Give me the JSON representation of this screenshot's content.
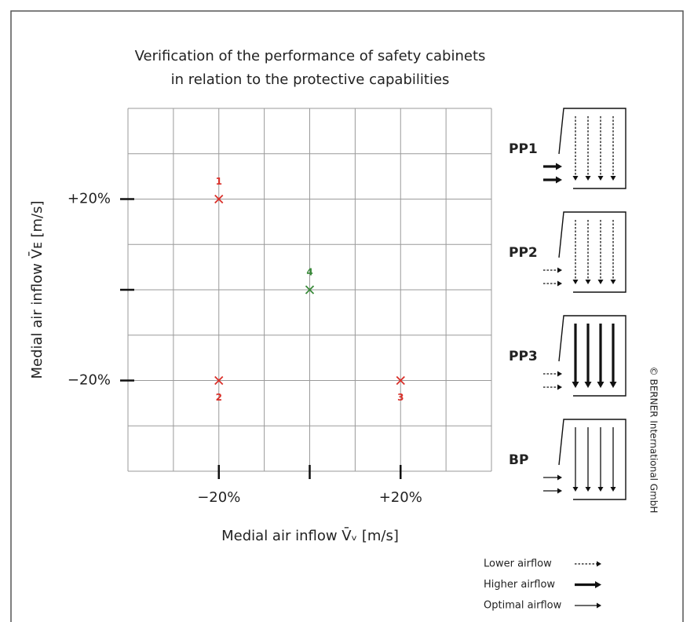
{
  "chart_data": {
    "type": "scatter",
    "title": [
      "Verification of the performance of safety cabinets",
      "in relation to the protective capabilities"
    ],
    "x_label": "Medial air inflow V̄ᵥ [m/s]",
    "y_label": "Medial air inflow V̄ᴇ [m/s]",
    "x": [
      -20,
      -20,
      20,
      0
    ],
    "y": [
      20,
      -20,
      -20,
      0
    ],
    "point_labels": [
      "1",
      "2",
      "3",
      "4"
    ],
    "colors": [
      "#d9302a",
      "#d9302a",
      "#d9302a",
      "#3a8a3a"
    ],
    "xlim": [
      -40,
      40
    ],
    "ylim": [
      -40,
      40
    ],
    "xticks": [
      {
        "value": -20,
        "label": "−20%"
      },
      {
        "value": 0,
        "label": null
      },
      {
        "value": 20,
        "label": "+20%"
      }
    ],
    "yticks": [
      {
        "value": -20,
        "label": "−20%"
      },
      {
        "value": 0,
        "label": null
      },
      {
        "value": 20,
        "label": "+20%"
      }
    ],
    "xgrid": [
      -40,
      -30,
      -20,
      -10,
      0,
      10,
      20,
      30,
      40
    ],
    "ygrid": [
      -40,
      -30,
      -20,
      -10,
      0,
      10,
      20,
      30,
      40
    ],
    "grid": true,
    "cabinets": [
      "PP1",
      "PP2",
      "PP3",
      "BP"
    ],
    "airflow_legend": [
      "Lower airflow",
      "Higher airflow",
      "Optimal airflow"
    ],
    "copyright": "© BERNER International GmbH"
  }
}
